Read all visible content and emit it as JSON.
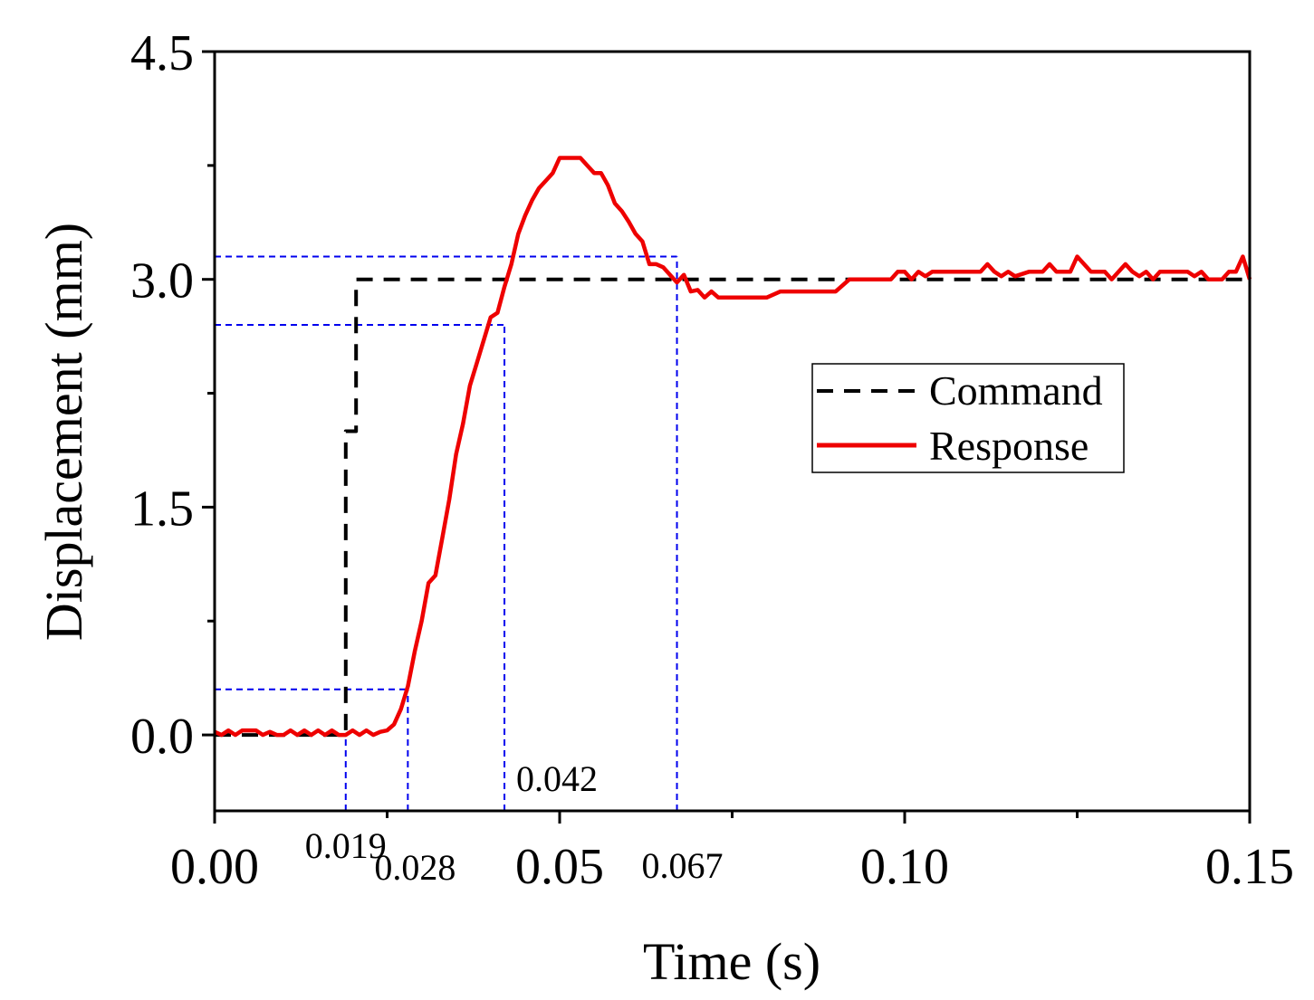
{
  "chart_data": {
    "type": "line",
    "xlabel": "Time (s)",
    "ylabel": "Displacement (mm)",
    "xlim": [
      0,
      0.15
    ],
    "ylim": [
      -0.5,
      4.5
    ],
    "x_ticks": [
      {
        "value": 0.0,
        "label": "0.00"
      },
      {
        "value": 0.05,
        "label": "0.05"
      },
      {
        "value": 0.1,
        "label": "0.10"
      },
      {
        "value": 0.15,
        "label": "0.15"
      }
    ],
    "x_minor_ticks": [
      0.025,
      0.075,
      0.125
    ],
    "y_ticks": [
      {
        "value": 0.0,
        "label": "0.0"
      },
      {
        "value": 1.5,
        "label": "1.5"
      },
      {
        "value": 3.0,
        "label": "3.0"
      },
      {
        "value": 4.5,
        "label": "4.5"
      }
    ],
    "y_minor_ticks": [
      0.75,
      2.25,
      3.75
    ],
    "legend": {
      "position": "center-right",
      "entries": [
        "Command",
        "Response"
      ]
    },
    "colors": {
      "command": "#000000",
      "response": "#ee0000",
      "guides": "#0000ee"
    },
    "series": [
      {
        "name": "Command",
        "style": "dashed",
        "x": [
          0,
          0.019,
          0.019,
          0.0205,
          0.0205,
          0.15
        ],
        "y": [
          0,
          0,
          2.0,
          2.0,
          3.0,
          3.0
        ]
      },
      {
        "name": "Response",
        "style": "solid",
        "x": [
          0,
          0.001,
          0.002,
          0.003,
          0.004,
          0.005,
          0.006,
          0.007,
          0.008,
          0.009,
          0.01,
          0.011,
          0.012,
          0.013,
          0.014,
          0.015,
          0.016,
          0.017,
          0.018,
          0.019,
          0.02,
          0.021,
          0.022,
          0.023,
          0.024,
          0.025,
          0.026,
          0.027,
          0.028,
          0.029,
          0.03,
          0.031,
          0.032,
          0.033,
          0.034,
          0.035,
          0.036,
          0.037,
          0.038,
          0.039,
          0.04,
          0.041,
          0.042,
          0.043,
          0.044,
          0.045,
          0.046,
          0.047,
          0.048,
          0.049,
          0.05,
          0.051,
          0.052,
          0.053,
          0.054,
          0.055,
          0.056,
          0.057,
          0.058,
          0.059,
          0.06,
          0.061,
          0.062,
          0.063,
          0.064,
          0.065,
          0.066,
          0.067,
          0.068,
          0.069,
          0.07,
          0.071,
          0.072,
          0.073,
          0.074,
          0.075,
          0.076,
          0.078,
          0.08,
          0.082,
          0.084,
          0.086,
          0.088,
          0.09,
          0.092,
          0.094,
          0.096,
          0.098,
          0.099,
          0.1,
          0.101,
          0.102,
          0.103,
          0.104,
          0.106,
          0.108,
          0.11,
          0.111,
          0.112,
          0.113,
          0.114,
          0.115,
          0.116,
          0.118,
          0.119,
          0.12,
          0.121,
          0.122,
          0.123,
          0.124,
          0.125,
          0.126,
          0.127,
          0.128,
          0.129,
          0.13,
          0.131,
          0.132,
          0.133,
          0.134,
          0.135,
          0.136,
          0.137,
          0.138,
          0.139,
          0.14,
          0.141,
          0.142,
          0.143,
          0.144,
          0.145,
          0.146,
          0.147,
          0.148,
          0.149,
          0.15
        ],
        "y": [
          0.02,
          0.0,
          0.03,
          0.0,
          0.03,
          0.03,
          0.03,
          0.0,
          0.02,
          0.0,
          0.0,
          0.03,
          0.0,
          0.03,
          0.0,
          0.03,
          0.0,
          0.03,
          0.0,
          0.0,
          0.03,
          0.0,
          0.03,
          0.0,
          0.02,
          0.03,
          0.07,
          0.17,
          0.32,
          0.55,
          0.75,
          1.0,
          1.05,
          1.3,
          1.55,
          1.85,
          2.05,
          2.3,
          2.45,
          2.6,
          2.75,
          2.78,
          2.95,
          3.1,
          3.3,
          3.42,
          3.52,
          3.6,
          3.65,
          3.7,
          3.8,
          3.8,
          3.8,
          3.8,
          3.75,
          3.7,
          3.7,
          3.62,
          3.5,
          3.45,
          3.38,
          3.3,
          3.25,
          3.1,
          3.1,
          3.08,
          3.03,
          2.98,
          3.03,
          2.92,
          2.93,
          2.88,
          2.92,
          2.88,
          2.88,
          2.88,
          2.88,
          2.88,
          2.88,
          2.92,
          2.92,
          2.92,
          2.92,
          2.92,
          3.0,
          3.0,
          3.0,
          3.0,
          3.05,
          3.05,
          3.0,
          3.05,
          3.02,
          3.05,
          3.05,
          3.05,
          3.05,
          3.05,
          3.1,
          3.05,
          3.02,
          3.05,
          3.02,
          3.05,
          3.05,
          3.05,
          3.1,
          3.05,
          3.05,
          3.05,
          3.15,
          3.1,
          3.05,
          3.05,
          3.05,
          3.0,
          3.05,
          3.1,
          3.05,
          3.02,
          3.05,
          3.0,
          3.05,
          3.05,
          3.05,
          3.05,
          3.05,
          3.02,
          3.05,
          3.0,
          3.0,
          3.0,
          3.05,
          3.05,
          3.15,
          3.0
        ]
      }
    ],
    "guides": [
      {
        "type": "h",
        "y": 0.3,
        "x_to": 0.028
      },
      {
        "type": "h",
        "y": 2.7,
        "x_to": 0.042
      },
      {
        "type": "h",
        "y": 3.15,
        "x_to": 0.067
      },
      {
        "type": "v",
        "x": 0.019,
        "y_to": 0.0
      },
      {
        "type": "v",
        "x": 0.028,
        "y_to": 0.3
      },
      {
        "type": "v",
        "x": 0.042,
        "y_to": 2.7
      },
      {
        "type": "v",
        "x": 0.067,
        "y_to": 3.15
      }
    ],
    "annotations": [
      {
        "label": "0.019",
        "x": 0.019
      },
      {
        "label": "0.028",
        "x": 0.028
      },
      {
        "label": "0.042",
        "x": 0.042
      },
      {
        "label": "0.067",
        "x": 0.067
      }
    ]
  }
}
